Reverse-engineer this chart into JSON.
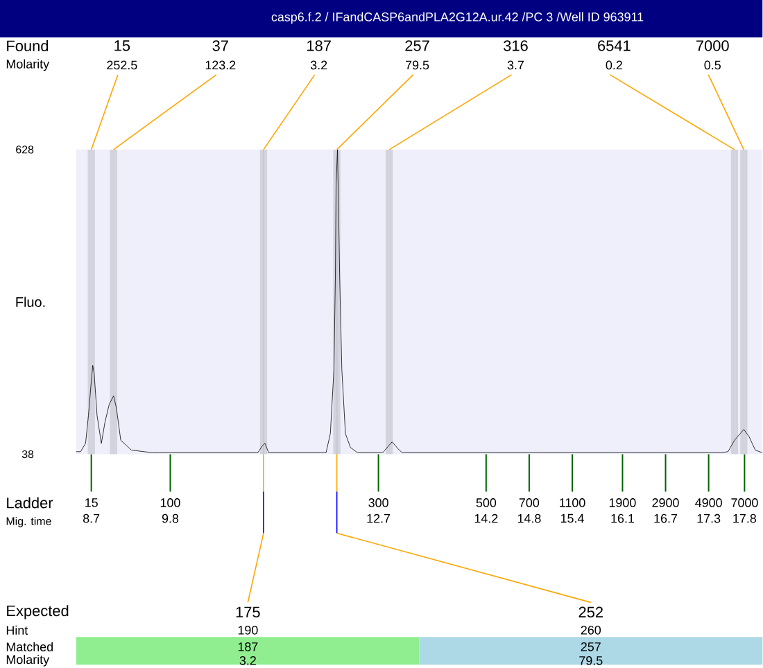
{
  "chart_data": {
    "type": "line",
    "title": "casp6.f.2 / IFandCASP6andPLA2G12A.ur.42 /PC 3 /Well ID 963911",
    "xlabel": "Mig. time",
    "ylabel": "Fluo.",
    "color": "#000000",
    "x": [
      8.49,
      8.55,
      8.62,
      8.66,
      8.7,
      8.72,
      8.74,
      8.78,
      8.84,
      8.89,
      8.95,
      9.01,
      9.05,
      9.11,
      9.26,
      9.55,
      11.02,
      11.08,
      11.12,
      11.17,
      11.97,
      12.03,
      12.08,
      12.1,
      12.11,
      12.13,
      12.16,
      12.19,
      12.24,
      12.31,
      12.41,
      12.76,
      12.84,
      12.89,
      12.97,
      13.03,
      17.47,
      17.57,
      17.66,
      17.74,
      17.79,
      17.86,
      17.95,
      18.05
    ],
    "values": [
      43,
      43,
      59,
      113,
      180,
      210,
      194,
      113,
      59,
      100,
      135,
      151,
      127,
      65,
      46,
      41,
      41,
      54,
      59,
      41,
      41,
      78,
      202,
      381,
      561,
      628,
      381,
      202,
      78,
      51,
      41,
      41,
      54,
      62,
      49,
      41,
      41,
      43,
      65,
      78,
      86,
      73,
      46,
      41
    ],
    "xlim": [
      8.49,
      18.05
    ],
    "ylim": [
      38,
      628
    ],
    "yticks": [
      38,
      628
    ],
    "xticks": [
      8.7,
      9.8,
      12.7,
      14.2,
      14.8,
      15.4,
      16.1,
      16.7,
      17.3,
      17.8
    ],
    "ref_lines": [
      {
        "axis": "x",
        "value": 11.1,
        "color": "#c8c8d4"
      },
      {
        "axis": "x",
        "value": 12.12,
        "color": "#c8c8d4"
      }
    ],
    "bands": [
      {
        "axis": "x",
        "from": 8.65,
        "to": 8.75,
        "color": "#d3d3de"
      },
      {
        "axis": "x",
        "from": 8.96,
        "to": 9.06,
        "color": "#d3d3de"
      },
      {
        "axis": "x",
        "from": 11.05,
        "to": 11.15,
        "color": "#d3d3de"
      },
      {
        "axis": "x",
        "from": 12.07,
        "to": 12.17,
        "color": "#d3d3de"
      },
      {
        "axis": "x",
        "from": 12.8,
        "to": 12.9,
        "color": "#d3d3de"
      },
      {
        "axis": "x",
        "from": 17.61,
        "to": 17.71,
        "color": "#d3d3de"
      },
      {
        "axis": "x",
        "from": 17.74,
        "to": 17.84,
        "color": "#d3d3de"
      }
    ],
    "annotations": [
      "Found",
      "Molarity",
      "Expected",
      "Hint",
      "Matched",
      "Molarity",
      "Ladder",
      "15",
      "37",
      "187",
      "257",
      "316",
      "6541",
      "7000",
      "252.5",
      "123.2",
      "3.2",
      "79.5",
      "3.7",
      "0.2",
      "0.5",
      "15",
      "100",
      "300",
      "500",
      "700",
      "1100",
      "1900",
      "2900",
      "4900",
      "7000",
      "175",
      "190",
      "187",
      "3.2",
      "252",
      "260",
      "257",
      "79.5"
    ]
  }
}
